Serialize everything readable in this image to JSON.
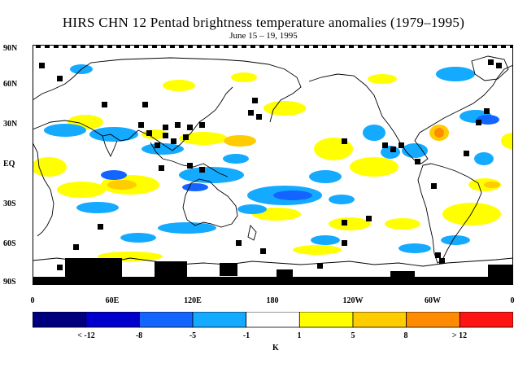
{
  "title": "HIRS CHN 12 Pentad brightness temperature anomalies (1979–1995)",
  "subtitle": "June 15 – 19, 1995",
  "lat_labels": [
    "90N",
    "60N",
    "30N",
    "EQ",
    "30S",
    "60S",
    "90S"
  ],
  "lon_labels": [
    "0",
    "60E",
    "120E",
    "180",
    "120W",
    "60W",
    "0"
  ],
  "colorbar": {
    "colors": [
      "#00007f",
      "#0000cc",
      "#1464ff",
      "#14aaff",
      "#ffffff",
      "#ffff00",
      "#ffcc00",
      "#ff8c00",
      "#ff1414"
    ],
    "labels": [
      "< -12",
      "-8",
      "-5",
      "-1",
      "1",
      "5",
      "8",
      "> 12"
    ],
    "unit": "K"
  },
  "legend_colors": {
    "missing": "#000000",
    "land_outline": "#000000"
  }
}
